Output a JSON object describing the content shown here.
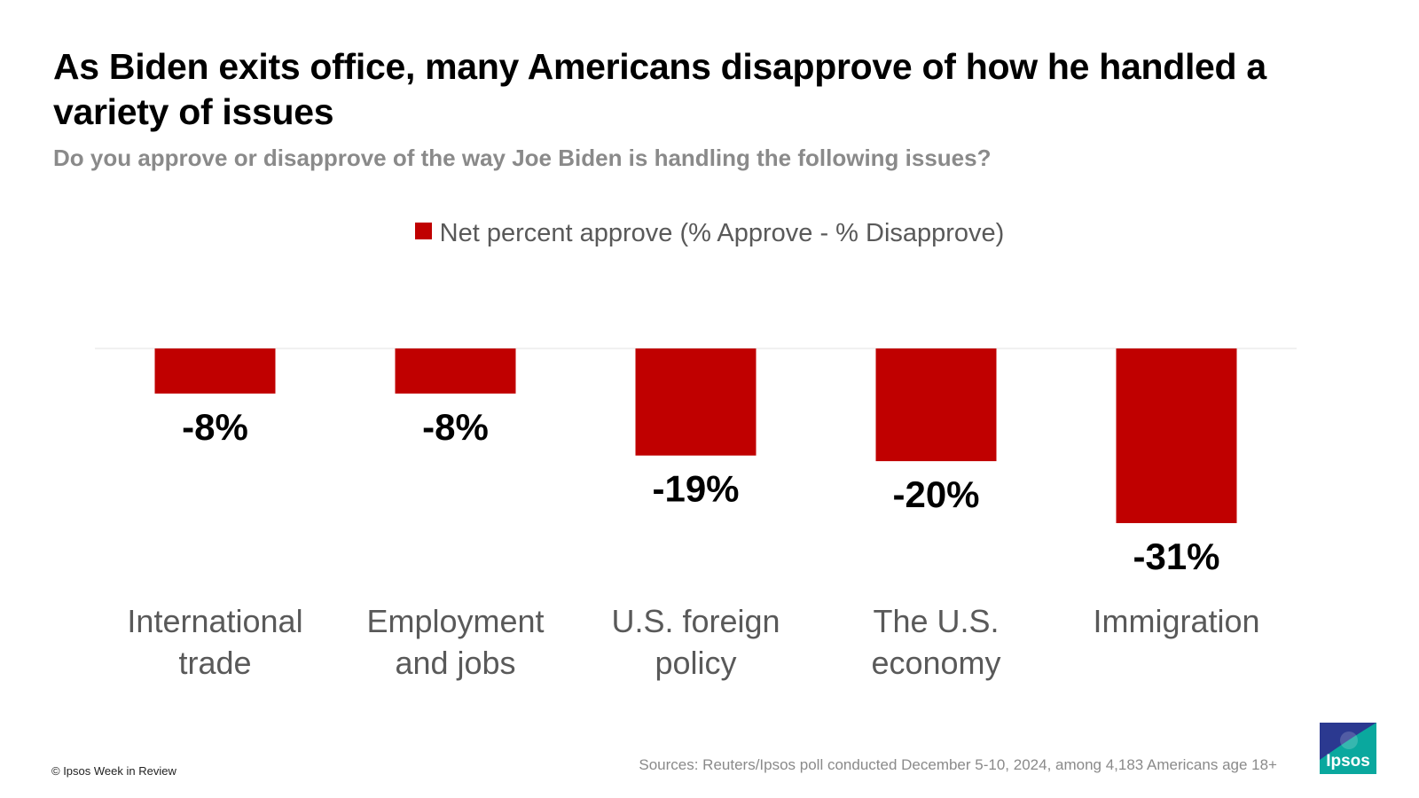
{
  "header": {
    "title": "As Biden exits office, many Americans disapprove of how he handled a variety of issues",
    "subtitle": "Do you approve or disapprove of the way Joe Biden is handling the following issues?"
  },
  "footer": {
    "copyright": "© Ipsos Week in Review",
    "sources": "Sources:  Reuters/Ipsos poll conducted December 5-10, 2024, among 4,183 Americans age 18+",
    "logo_text": "Ipsos"
  },
  "colors": {
    "bar": "#c00000",
    "logo_blue": "#2b3990",
    "logo_teal": "#0aa89e"
  },
  "chart_data": {
    "type": "bar",
    "categories": [
      [
        "International",
        "trade"
      ],
      [
        "Employment",
        "and jobs"
      ],
      [
        "U.S. foreign",
        "policy"
      ],
      [
        "The U.S.",
        "economy"
      ],
      [
        "Immigration"
      ]
    ],
    "series": [
      {
        "name": "Net percent approve (% Approve - % Disapprove)",
        "values": [
          -8,
          -8,
          -19,
          -20,
          -31
        ],
        "labels": [
          "-8%",
          "-8%",
          "-19%",
          "-20%",
          "-31%"
        ]
      }
    ],
    "ylim": [
      -31,
      0
    ],
    "legend": "top-center",
    "grid": false
  }
}
